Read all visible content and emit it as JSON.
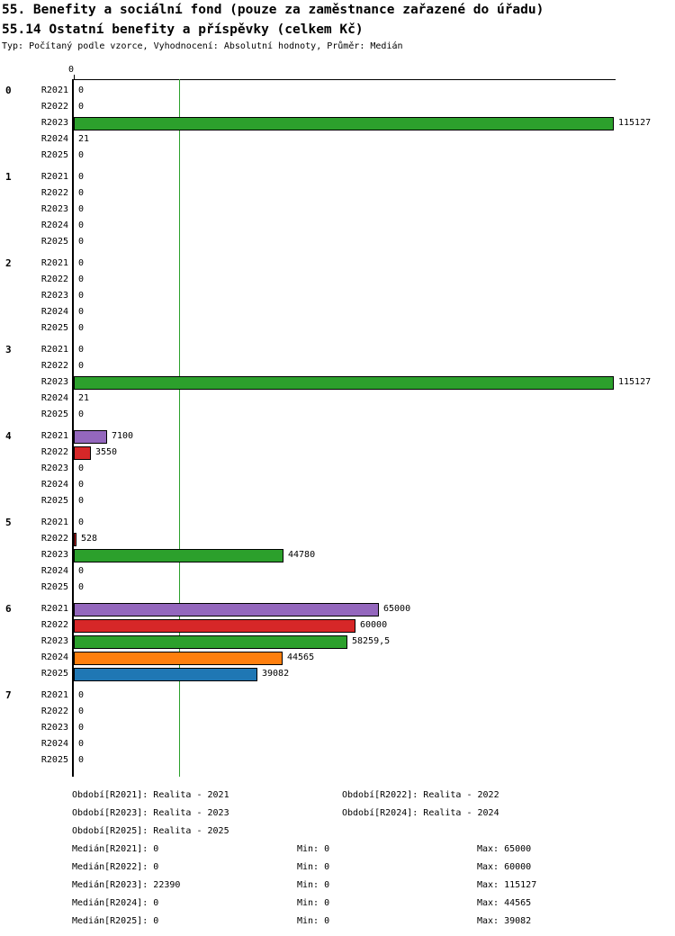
{
  "header": {
    "title": "55. Benefity a sociální fond (pouze za zaměstnance zařazené do úřadu)",
    "subtitle": "55.14 Ostatní benefity a příspěvky (celkem Kč)",
    "meta": "Typ: Počítaný podle vzorce, Vyhodnocení: Absolutní hodnoty, Průměr: Medián"
  },
  "chart_data": {
    "type": "bar",
    "orientation": "horizontal",
    "title": "55.14 Ostatní benefity a příspěvky (celkem Kč)",
    "xlabel": "",
    "ylabel": "",
    "xlim": [
      0,
      115127
    ],
    "grid": false,
    "axis_tick_labels": [
      "0"
    ],
    "bar_border_color": "#000000",
    "series": [
      {
        "name": "R2021",
        "color": "#9467bd"
      },
      {
        "name": "R2022",
        "color": "#d62728"
      },
      {
        "name": "R2023",
        "color": "#2ca02c"
      },
      {
        "name": "R2024",
        "color": "#ff7f0e"
      },
      {
        "name": "R2025",
        "color": "#1f77b4"
      }
    ],
    "median_line": {
      "value": 22390,
      "color": "#2ca02c"
    },
    "groups": [
      {
        "label": "0",
        "values": [
          0,
          0,
          115127,
          21,
          0
        ],
        "value_labels": [
          "0",
          "0",
          "115127",
          "21",
          "0"
        ]
      },
      {
        "label": "1",
        "values": [
          0,
          0,
          0,
          0,
          0
        ],
        "value_labels": [
          "0",
          "0",
          "0",
          "0",
          "0"
        ]
      },
      {
        "label": "2",
        "values": [
          0,
          0,
          0,
          0,
          0
        ],
        "value_labels": [
          "0",
          "0",
          "0",
          "0",
          "0"
        ]
      },
      {
        "label": "3",
        "values": [
          0,
          0,
          115127,
          21,
          0
        ],
        "value_labels": [
          "0",
          "0",
          "115127",
          "21",
          "0"
        ]
      },
      {
        "label": "4",
        "values": [
          7100,
          3550,
          0,
          0,
          0
        ],
        "value_labels": [
          "7100",
          "3550",
          "0",
          "0",
          "0"
        ]
      },
      {
        "label": "5",
        "values": [
          0,
          528,
          44780,
          0,
          0
        ],
        "value_labels": [
          "0",
          "528",
          "44780",
          "0",
          "0"
        ]
      },
      {
        "label": "6",
        "values": [
          65000,
          60000,
          58259.5,
          44565,
          39082
        ],
        "value_labels": [
          "65000",
          "60000",
          "58259,5",
          "44565",
          "39082"
        ]
      },
      {
        "label": "7",
        "values": [
          0,
          0,
          0,
          0,
          0
        ],
        "value_labels": [
          "0",
          "0",
          "0",
          "0",
          "0"
        ]
      }
    ],
    "legend": [
      "Období[R2021]: Realita - 2021",
      "Období[R2022]: Realita - 2022",
      "Období[R2023]: Realita - 2023",
      "Období[R2024]: Realita - 2024",
      "Období[R2025]: Realita - 2025"
    ],
    "stats": [
      {
        "median": "Medián[R2021]: 0",
        "min": "Min: 0",
        "max": "Max: 65000"
      },
      {
        "median": "Medián[R2022]: 0",
        "min": "Min: 0",
        "max": "Max: 60000"
      },
      {
        "median": "Medián[R2023]: 22390",
        "min": "Min: 0",
        "max": "Max: 115127"
      },
      {
        "median": "Medián[R2024]: 0",
        "min": "Min: 0",
        "max": "Max: 44565"
      },
      {
        "median": "Medián[R2025]: 0",
        "min": "Min: 0",
        "max": "Max: 39082"
      }
    ]
  }
}
